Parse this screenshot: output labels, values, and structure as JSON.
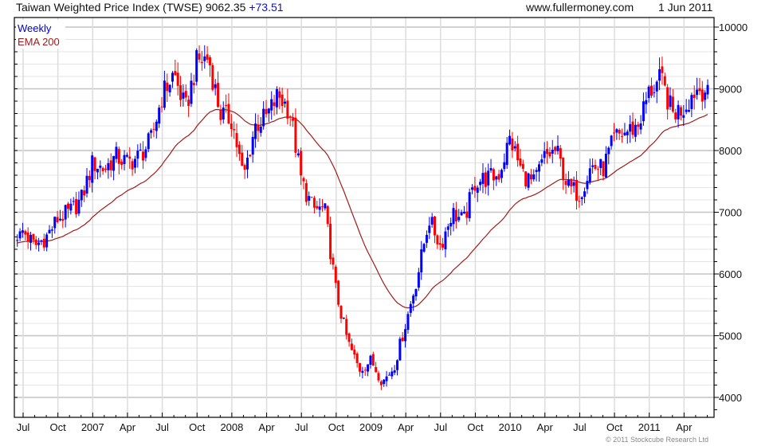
{
  "header": {
    "title": "Taiwan Weighted Price Index (TWSE)",
    "last": "9062.35",
    "change": "+73.51",
    "site": "www.fullermoney.com",
    "date": "1 Jun 2011"
  },
  "footer": {
    "copyright": "© 2011 Stockcube Research Ltd"
  },
  "colors": {
    "up": "#0000ff",
    "down": "#ff0000",
    "ema": "#a01c1c",
    "change": "#1010c8"
  },
  "chart_data": {
    "type": "candlestick",
    "title": "Taiwan Weighted Price Index (TWSE)",
    "frequency": "Weekly",
    "legend": [
      {
        "label": "Weekly",
        "color": "#0000ff"
      },
      {
        "label": "EMA 200",
        "color": "#a01c1c"
      }
    ],
    "legend_position": "top-left",
    "ylim": [
      3800,
      10150
    ],
    "yticks": [
      4000,
      5000,
      6000,
      7000,
      8000,
      9000,
      10000
    ],
    "ytick_labels": [
      "4000",
      "5000",
      "6000",
      "7000",
      "8000",
      "9000",
      "10000"
    ],
    "xtick_labels": [
      "Jul",
      "Oct",
      "2007",
      "Apr",
      "Jul",
      "Oct",
      "2008",
      "Apr",
      "Jul",
      "Oct",
      "2009",
      "Apr",
      "Jul",
      "Oct",
      "2010",
      "Apr",
      "Jul",
      "Oct",
      "2011",
      "Apr"
    ],
    "start_value": 6550,
    "ema_seed": 6500,
    "monthly_close_months": [
      "2006-06",
      "2006-07",
      "2006-08",
      "2006-09",
      "2006-10",
      "2006-11",
      "2006-12",
      "2007-01",
      "2007-02",
      "2007-03",
      "2007-04",
      "2007-05",
      "2007-06",
      "2007-07",
      "2007-08",
      "2007-09",
      "2007-10",
      "2007-11",
      "2007-12",
      "2008-01",
      "2008-02",
      "2008-03",
      "2008-04",
      "2008-05",
      "2008-06",
      "2008-07",
      "2008-08",
      "2008-09",
      "2008-10",
      "2008-11",
      "2008-12",
      "2009-01",
      "2009-02",
      "2009-03",
      "2009-04",
      "2009-05",
      "2009-06",
      "2009-07",
      "2009-08",
      "2009-09",
      "2009-10",
      "2009-11",
      "2009-12",
      "2010-01",
      "2010-02",
      "2010-03",
      "2010-04",
      "2010-05",
      "2010-06",
      "2010-07",
      "2010-08",
      "2010-09",
      "2010-10",
      "2010-11",
      "2010-12",
      "2011-01",
      "2011-02",
      "2011-03",
      "2011-04",
      "2011-05",
      "2011-06-01"
    ],
    "monthly_close": [
      6700,
      6450,
      6600,
      6900,
      7000,
      7200,
      7800,
      7700,
      7900,
      7800,
      7900,
      8150,
      8900,
      9250,
      8650,
      9450,
      9500,
      8600,
      8500,
      7550,
      8400,
      8550,
      8900,
      8650,
      7500,
      7050,
      7050,
      5700,
      4900,
      4450,
      4600,
      4250,
      4500,
      5200,
      5950,
      6900,
      6450,
      7000,
      6850,
      7500,
      7550,
      7600,
      8200,
      7650,
      7450,
      7900,
      8000,
      7400,
      7300,
      7750,
      7700,
      8200,
      8300,
      8400,
      8950,
      9150,
      8600,
      8700,
      9000,
      8990,
      9062
    ]
  }
}
